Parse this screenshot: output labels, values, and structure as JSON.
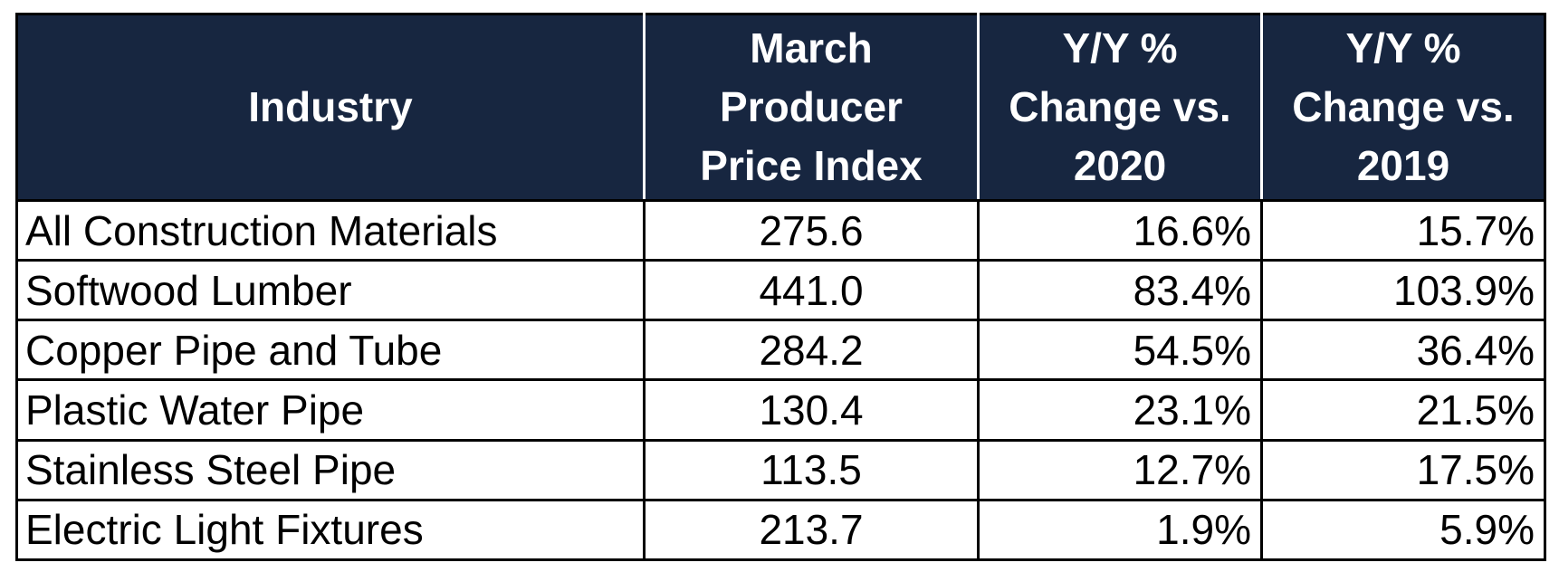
{
  "chart_data": {
    "type": "table",
    "columns": [
      {
        "key": "industry",
        "lines": [
          "Industry"
        ]
      },
      {
        "key": "ppi",
        "lines": [
          "March",
          "Producer",
          "Price Index"
        ]
      },
      {
        "key": "yy2020",
        "lines": [
          "Y/Y %",
          "Change vs.",
          "2020"
        ]
      },
      {
        "key": "yy2019",
        "lines": [
          "Y/Y %",
          "Change vs.",
          "2019"
        ]
      }
    ],
    "rows": [
      {
        "industry": "All Construction Materials",
        "ppi": "275.6",
        "yy2020": "16.6%",
        "yy2019": "15.7%"
      },
      {
        "industry": "Softwood Lumber",
        "ppi": "441.0",
        "yy2020": "83.4%",
        "yy2019": "103.9%"
      },
      {
        "industry": "Copper Pipe and Tube",
        "ppi": "284.2",
        "yy2020": "54.5%",
        "yy2019": "36.4%"
      },
      {
        "industry": "Plastic Water Pipe",
        "ppi": "130.4",
        "yy2020": "23.1%",
        "yy2019": "21.5%"
      },
      {
        "industry": "Stainless Steel Pipe",
        "ppi": "113.5",
        "yy2020": "12.7%",
        "yy2019": "17.5%"
      },
      {
        "industry": "Electric Light Fixtures",
        "ppi": "213.7",
        "yy2020": "1.9%",
        "yy2019": "5.9%"
      }
    ],
    "colors": {
      "header_background": "#172640",
      "header_text": "#ffffff",
      "body_text": "#000000",
      "grid": "#000000"
    }
  }
}
